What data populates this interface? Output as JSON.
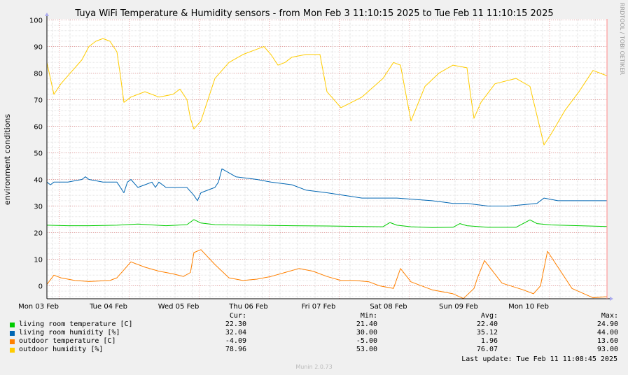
{
  "title": "Tuya WiFi Temperature & Humidity sensors - from Mon Feb  3 11:10:15 2025 to Tue Feb 11 11:10:15 2025",
  "side_note": "RRDTOOL / TOBI OETIKER",
  "footer": "Munin 2.0.73",
  "last_update": "Last update: Tue Feb 11 11:08:45 2025",
  "legend_headers": {
    "cur": "Cur:",
    "min": "Min:",
    "avg": "Avg:",
    "max": "Max:"
  },
  "legend": [
    {
      "name": "living room temperature [C]",
      "color": "#00cc00",
      "cur": "22.30",
      "min": "21.40",
      "avg": "22.40",
      "max": "24.90"
    },
    {
      "name": "living room humidity [%]",
      "color": "#0066b3",
      "cur": "32.04",
      "min": "30.00",
      "avg": "35.12",
      "max": "44.00"
    },
    {
      "name": "outdoor temperature [C]",
      "color": "#ff8000",
      "cur": "-4.09",
      "min": "-5.00",
      "avg": "1.96",
      "max": "13.60"
    },
    {
      "name": "outdoor humidity [%]",
      "color": "#ffcc00",
      "cur": "78.96",
      "min": "53.00",
      "avg": "76.07",
      "max": "93.00"
    }
  ],
  "chart_data": {
    "type": "line",
    "title": "Tuya WiFi Temperature & Humidity sensors - from Mon Feb  3 11:10:15 2025 to Tue Feb 11 11:10:15 2025",
    "ylabel": "environment conditions",
    "xlabel": "",
    "ylim": [
      -5,
      100
    ],
    "yticks": [
      0,
      10,
      20,
      30,
      40,
      50,
      60,
      70,
      80,
      90,
      100
    ],
    "xlim": [
      0,
      8.0
    ],
    "xticks": [
      {
        "label": "Mon 03 Feb",
        "x": -0.17
      },
      {
        "label": "Tue 04 Feb",
        "x": 0.83
      },
      {
        "label": "Wed 05 Feb",
        "x": 1.83
      },
      {
        "label": "Thu 06 Feb",
        "x": 2.83
      },
      {
        "label": "Fri 07 Feb",
        "x": 3.83
      },
      {
        "label": "Sat 08 Feb",
        "x": 4.83
      },
      {
        "label": "Sun 09 Feb",
        "x": 5.83
      },
      {
        "label": "Mon 10 Feb",
        "x": 6.83
      }
    ],
    "x_unit": "days since Mon Feb 3 11:10:15 2025",
    "grid": true,
    "series": [
      {
        "name": "living room temperature [C]",
        "color": "#00cc00",
        "x": [
          0,
          0.3,
          0.6,
          1.0,
          1.3,
          1.5,
          1.7,
          2.0,
          2.1,
          2.2,
          2.4,
          2.6,
          3.0,
          3.5,
          4.0,
          4.5,
          4.8,
          4.9,
          5.0,
          5.2,
          5.5,
          5.8,
          5.9,
          6.0,
          6.3,
          6.7,
          6.9,
          7.0,
          7.2,
          7.6,
          8.0
        ],
        "values": [
          22.8,
          22.6,
          22.6,
          22.8,
          23.2,
          22.9,
          22.6,
          23.0,
          24.9,
          23.6,
          23.0,
          22.9,
          22.8,
          22.6,
          22.5,
          22.3,
          22.2,
          23.8,
          22.8,
          22.2,
          21.9,
          22.0,
          23.4,
          22.6,
          22.0,
          22.0,
          24.8,
          23.4,
          22.9,
          22.6,
          22.3
        ]
      },
      {
        "name": "living room humidity [%]",
        "color": "#0066b3",
        "x": [
          0,
          0.05,
          0.1,
          0.2,
          0.3,
          0.5,
          0.55,
          0.6,
          0.8,
          1.0,
          1.1,
          1.15,
          1.2,
          1.3,
          1.4,
          1.5,
          1.55,
          1.6,
          1.7,
          2.0,
          2.1,
          2.15,
          2.2,
          2.4,
          2.45,
          2.5,
          2.7,
          3.0,
          3.2,
          3.5,
          3.7,
          4.0,
          4.5,
          5.0,
          5.5,
          5.8,
          6.0,
          6.3,
          6.6,
          7.0,
          7.1,
          7.3,
          7.6,
          8.0
        ],
        "values": [
          39,
          38,
          39,
          39,
          39,
          40,
          41,
          40,
          39,
          39,
          35,
          39,
          40,
          37,
          38,
          39,
          37,
          39,
          37,
          37,
          34,
          32,
          35,
          37,
          39,
          44,
          41,
          40,
          39,
          38,
          36,
          35,
          33,
          33,
          32,
          31,
          31,
          30,
          30,
          31,
          33,
          32,
          32,
          32
        ]
      },
      {
        "name": "outdoor temperature [C]",
        "color": "#ff8000",
        "x": [
          0,
          0.1,
          0.2,
          0.4,
          0.6,
          0.9,
          1.0,
          1.1,
          1.2,
          1.4,
          1.6,
          1.8,
          1.95,
          2.05,
          2.1,
          2.2,
          2.4,
          2.6,
          2.8,
          3.0,
          3.2,
          3.4,
          3.6,
          3.8,
          4.0,
          4.2,
          4.4,
          4.6,
          4.75,
          4.85,
          4.95,
          5.05,
          5.2,
          5.5,
          5.8,
          5.95,
          6.1,
          6.15,
          6.25,
          6.5,
          6.8,
          6.95,
          7.05,
          7.15,
          7.3,
          7.5,
          7.8,
          8.0
        ],
        "values": [
          0.5,
          4,
          3,
          2,
          1.6,
          2,
          3,
          6,
          9,
          7,
          5.5,
          4.5,
          3.5,
          5,
          12.5,
          13.6,
          8,
          3,
          2,
          2.5,
          3.5,
          5,
          6.5,
          5.5,
          3.5,
          2,
          2,
          1.5,
          0,
          -0.5,
          -1,
          6.5,
          1.5,
          -1.5,
          -3,
          -4.8,
          -1,
          3,
          9.5,
          1,
          -1.5,
          -3,
          0,
          13,
          7,
          -1,
          -4.5,
          -4.1
        ]
      },
      {
        "name": "outdoor humidity [%]",
        "color": "#ffcc00",
        "x": [
          0,
          0.05,
          0.1,
          0.2,
          0.3,
          0.5,
          0.6,
          0.7,
          0.8,
          0.9,
          1.0,
          1.05,
          1.1,
          1.2,
          1.4,
          1.6,
          1.8,
          1.9,
          2.0,
          2.05,
          2.1,
          2.2,
          2.4,
          2.6,
          2.8,
          3.0,
          3.1,
          3.2,
          3.3,
          3.4,
          3.5,
          3.7,
          3.9,
          4.0,
          4.2,
          4.5,
          4.8,
          4.95,
          5.05,
          5.1,
          5.2,
          5.4,
          5.6,
          5.8,
          6.0,
          6.05,
          6.1,
          6.2,
          6.4,
          6.7,
          6.9,
          7.0,
          7.1,
          7.2,
          7.4,
          7.6,
          7.8,
          7.9,
          8.0
        ],
        "values": [
          84,
          78,
          72,
          76,
          79,
          85,
          90,
          92,
          93,
          92,
          88,
          79,
          69,
          71,
          73,
          71,
          72,
          74,
          70,
          63,
          59,
          62,
          78,
          84,
          87,
          89,
          90,
          87,
          83,
          84,
          86,
          87,
          87,
          73,
          67,
          71,
          78,
          84,
          83,
          76,
          62,
          75,
          80,
          83,
          82,
          72,
          63,
          69,
          76,
          78,
          75,
          64,
          53,
          57,
          66,
          73,
          81,
          80,
          79
        ]
      }
    ]
  }
}
